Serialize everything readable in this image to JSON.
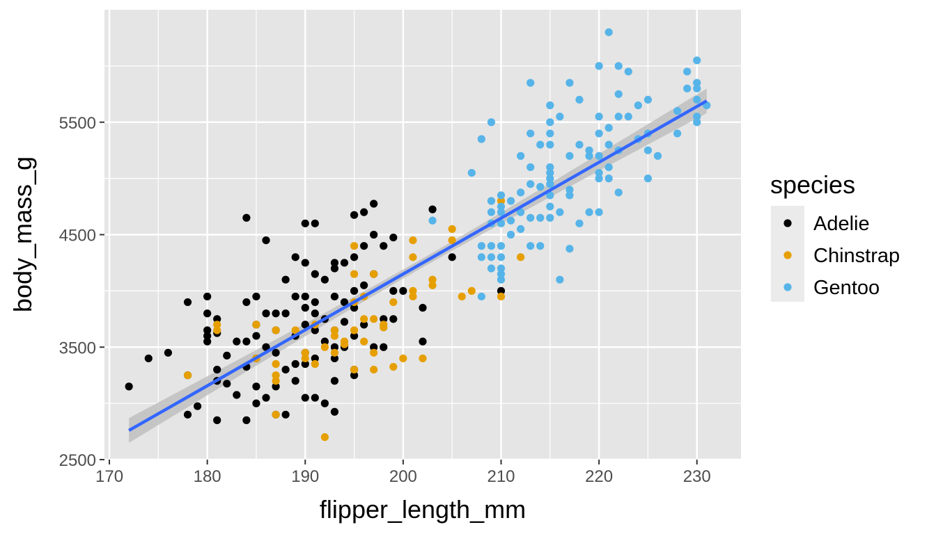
{
  "chart_data": {
    "type": "scatter",
    "xlabel": "flipper_length_mm",
    "ylabel": "body_mass_g",
    "xlim": [
      169.5,
      234.5
    ],
    "ylim": [
      2500,
      6500
    ],
    "x_ticks": [
      170,
      180,
      190,
      200,
      210,
      220,
      230
    ],
    "y_ticks": [
      2500,
      3500,
      4500,
      5500
    ],
    "x_tick_labels": [
      "170",
      "180",
      "190",
      "200",
      "210",
      "220",
      "230"
    ],
    "y_tick_labels": [
      "2500",
      "3500",
      "4500",
      "5500"
    ],
    "grid": true,
    "legend": {
      "title": "species",
      "position": "right"
    },
    "colors": {
      "panel": "#e5e5e5",
      "grid": "#ffffff",
      "fit_line": "#3366ff",
      "ribbon": "#bdbdbd"
    },
    "fit_line": {
      "x": [
        172,
        231
      ],
      "y": [
        2759,
        5690
      ],
      "ci_halfwidth_ends": 110,
      "ci_halfwidth_mid": 40
    },
    "series": [
      {
        "name": "Adelie",
        "color": "#000000",
        "points": [
          [
            172,
            3150
          ],
          [
            174,
            3400
          ],
          [
            176,
            3450
          ],
          [
            178,
            3900
          ],
          [
            178,
            3250
          ],
          [
            178,
            2900
          ],
          [
            179,
            2975
          ],
          [
            180,
            3950
          ],
          [
            180,
            3800
          ],
          [
            180,
            3650
          ],
          [
            180,
            3600
          ],
          [
            180,
            3550
          ],
          [
            181,
            3750
          ],
          [
            181,
            3625
          ],
          [
            181,
            3300
          ],
          [
            181,
            3200
          ],
          [
            181,
            2850
          ],
          [
            182,
            3425
          ],
          [
            182,
            3175
          ],
          [
            183,
            3550
          ],
          [
            183,
            3075
          ],
          [
            184,
            4650
          ],
          [
            184,
            3900
          ],
          [
            184,
            3550
          ],
          [
            184,
            3325
          ],
          [
            184,
            2850
          ],
          [
            185,
            3950
          ],
          [
            185,
            3700
          ],
          [
            185,
            3600
          ],
          [
            185,
            3400
          ],
          [
            185,
            3150
          ],
          [
            185,
            3000
          ],
          [
            186,
            4450
          ],
          [
            186,
            3800
          ],
          [
            186,
            3500
          ],
          [
            186,
            3050
          ],
          [
            187,
            3800
          ],
          [
            187,
            3650
          ],
          [
            187,
            3450
          ],
          [
            187,
            3150
          ],
          [
            187,
            2900
          ],
          [
            188,
            4100
          ],
          [
            188,
            3800
          ],
          [
            188,
            3300
          ],
          [
            188,
            2900
          ],
          [
            189,
            4300
          ],
          [
            189,
            3950
          ],
          [
            189,
            3600
          ],
          [
            189,
            3350
          ],
          [
            189,
            3200
          ],
          [
            190,
            4600
          ],
          [
            190,
            4250
          ],
          [
            190,
            3950
          ],
          [
            190,
            3850
          ],
          [
            190,
            3700
          ],
          [
            190,
            3450
          ],
          [
            190,
            3350
          ],
          [
            190,
            3050
          ],
          [
            191,
            4600
          ],
          [
            191,
            4150
          ],
          [
            191,
            3900
          ],
          [
            191,
            3800
          ],
          [
            191,
            3650
          ],
          [
            191,
            3400
          ],
          [
            191,
            3050
          ],
          [
            192,
            4100
          ],
          [
            192,
            3750
          ],
          [
            192,
            3550
          ],
          [
            192,
            3000
          ],
          [
            193,
            4250
          ],
          [
            193,
            4200
          ],
          [
            193,
            3950
          ],
          [
            193,
            3650
          ],
          [
            193,
            3500
          ],
          [
            193,
            3400
          ],
          [
            193,
            3200
          ],
          [
            193,
            2925
          ],
          [
            194,
            4250
          ],
          [
            194,
            3900
          ],
          [
            194,
            3725
          ],
          [
            194,
            3500
          ],
          [
            195,
            4675
          ],
          [
            195,
            4300
          ],
          [
            195,
            4000
          ],
          [
            195,
            3850
          ],
          [
            195,
            3600
          ],
          [
            195,
            3300
          ],
          [
            195,
            3250
          ],
          [
            196,
            4700
          ],
          [
            196,
            4400
          ],
          [
            196,
            4050
          ],
          [
            196,
            3700
          ],
          [
            197,
            4775
          ],
          [
            197,
            4500
          ],
          [
            197,
            4150
          ],
          [
            197,
            3500
          ],
          [
            198,
            4400
          ],
          [
            198,
            3750
          ],
          [
            198,
            3500
          ],
          [
            199,
            4475
          ],
          [
            199,
            4000
          ],
          [
            199,
            3750
          ],
          [
            200,
            4000
          ],
          [
            202,
            3850
          ],
          [
            202,
            3550
          ],
          [
            203,
            4725
          ],
          [
            205,
            4300
          ],
          [
            210,
            4000
          ]
        ]
      },
      {
        "name": "Chinstrap",
        "color": "#e69f00",
        "points": [
          [
            178,
            3250
          ],
          [
            181,
            3700
          ],
          [
            181,
            3650
          ],
          [
            185,
            3700
          ],
          [
            185,
            3400
          ],
          [
            187,
            3650
          ],
          [
            187,
            3350
          ],
          [
            187,
            3250
          ],
          [
            187,
            3200
          ],
          [
            187,
            2900
          ],
          [
            189,
            3650
          ],
          [
            190,
            3450
          ],
          [
            190,
            3400
          ],
          [
            191,
            3700
          ],
          [
            191,
            3350
          ],
          [
            192,
            3500
          ],
          [
            192,
            2700
          ],
          [
            193,
            3650
          ],
          [
            193,
            3600
          ],
          [
            193,
            3450
          ],
          [
            194,
            3525
          ],
          [
            194,
            3550
          ],
          [
            195,
            4400
          ],
          [
            195,
            4150
          ],
          [
            195,
            3900
          ],
          [
            195,
            3650
          ],
          [
            195,
            3300
          ],
          [
            196,
            3950
          ],
          [
            196,
            3750
          ],
          [
            196,
            3550
          ],
          [
            197,
            4150
          ],
          [
            197,
            3750
          ],
          [
            197,
            3450
          ],
          [
            197,
            3300
          ],
          [
            198,
            3700
          ],
          [
            198,
            3675
          ],
          [
            199,
            3900
          ],
          [
            199,
            3325
          ],
          [
            200,
            3400
          ],
          [
            201,
            4450
          ],
          [
            201,
            4300
          ],
          [
            201,
            4000
          ],
          [
            201,
            3950
          ],
          [
            202,
            3400
          ],
          [
            203,
            4100
          ],
          [
            203,
            4050
          ],
          [
            205,
            4550
          ],
          [
            205,
            4450
          ],
          [
            206,
            3950
          ],
          [
            207,
            4000
          ],
          [
            210,
            4800
          ],
          [
            210,
            3950
          ],
          [
            212,
            4300
          ]
        ]
      },
      {
        "name": "Gentoo",
        "color": "#56b4e9",
        "points": [
          [
            203,
            4625
          ],
          [
            207,
            5050
          ],
          [
            208,
            5350
          ],
          [
            208,
            4400
          ],
          [
            208,
            4300
          ],
          [
            208,
            3950
          ],
          [
            209,
            5500
          ],
          [
            209,
            4800
          ],
          [
            209,
            4700
          ],
          [
            209,
            4600
          ],
          [
            209,
            4400
          ],
          [
            209,
            4300
          ],
          [
            209,
            4200
          ],
          [
            210,
            4850
          ],
          [
            210,
            4750
          ],
          [
            210,
            4700
          ],
          [
            210,
            4600
          ],
          [
            210,
            4400
          ],
          [
            210,
            4300
          ],
          [
            210,
            4200
          ],
          [
            210,
            4150
          ],
          [
            210,
            4100
          ],
          [
            211,
            4800
          ],
          [
            211,
            4625
          ],
          [
            211,
            4500
          ],
          [
            212,
            5200
          ],
          [
            212,
            4875
          ],
          [
            212,
            4700
          ],
          [
            212,
            4550
          ],
          [
            213,
            5850
          ],
          [
            213,
            5400
          ],
          [
            213,
            5100
          ],
          [
            213,
            4950
          ],
          [
            213,
            4650
          ],
          [
            213,
            4400
          ],
          [
            214,
            5300
          ],
          [
            214,
            4925
          ],
          [
            214,
            4650
          ],
          [
            214,
            4400
          ],
          [
            215,
            5650
          ],
          [
            215,
            5500
          ],
          [
            215,
            5400
          ],
          [
            215,
            5300
          ],
          [
            215,
            5100
          ],
          [
            215,
            5050
          ],
          [
            215,
            5000
          ],
          [
            215,
            4950
          ],
          [
            215,
            4850
          ],
          [
            215,
            4750
          ],
          [
            215,
            4650
          ],
          [
            216,
            5550
          ],
          [
            216,
            4700
          ],
          [
            216,
            4100
          ],
          [
            217,
            5850
          ],
          [
            217,
            5200
          ],
          [
            217,
            4900
          ],
          [
            217,
            4850
          ],
          [
            217,
            4375
          ],
          [
            218,
            5700
          ],
          [
            218,
            5300
          ],
          [
            218,
            4600
          ],
          [
            219,
            5250
          ],
          [
            219,
            5200
          ],
          [
            219,
            4700
          ],
          [
            220,
            6000
          ],
          [
            220,
            5550
          ],
          [
            220,
            5400
          ],
          [
            220,
            5200
          ],
          [
            220,
            5050
          ],
          [
            220,
            5000
          ],
          [
            220,
            4700
          ],
          [
            221,
            6300
          ],
          [
            221,
            5450
          ],
          [
            221,
            5300
          ],
          [
            221,
            5100
          ],
          [
            221,
            5000
          ],
          [
            222,
            6000
          ],
          [
            222,
            5750
          ],
          [
            222,
            5550
          ],
          [
            222,
            5250
          ],
          [
            222,
            4875
          ],
          [
            223,
            5950
          ],
          [
            223,
            5550
          ],
          [
            224,
            5650
          ],
          [
            224,
            5350
          ],
          [
            225,
            5700
          ],
          [
            225,
            5400
          ],
          [
            225,
            5250
          ],
          [
            225,
            5000
          ],
          [
            226,
            5200
          ],
          [
            228,
            5600
          ],
          [
            228,
            5400
          ],
          [
            229,
            5950
          ],
          [
            229,
            5800
          ],
          [
            230,
            6050
          ],
          [
            230,
            5850
          ],
          [
            230,
            5800
          ],
          [
            230,
            5700
          ],
          [
            230,
            5550
          ],
          [
            230,
            5500
          ],
          [
            231,
            5650
          ]
        ]
      }
    ]
  }
}
